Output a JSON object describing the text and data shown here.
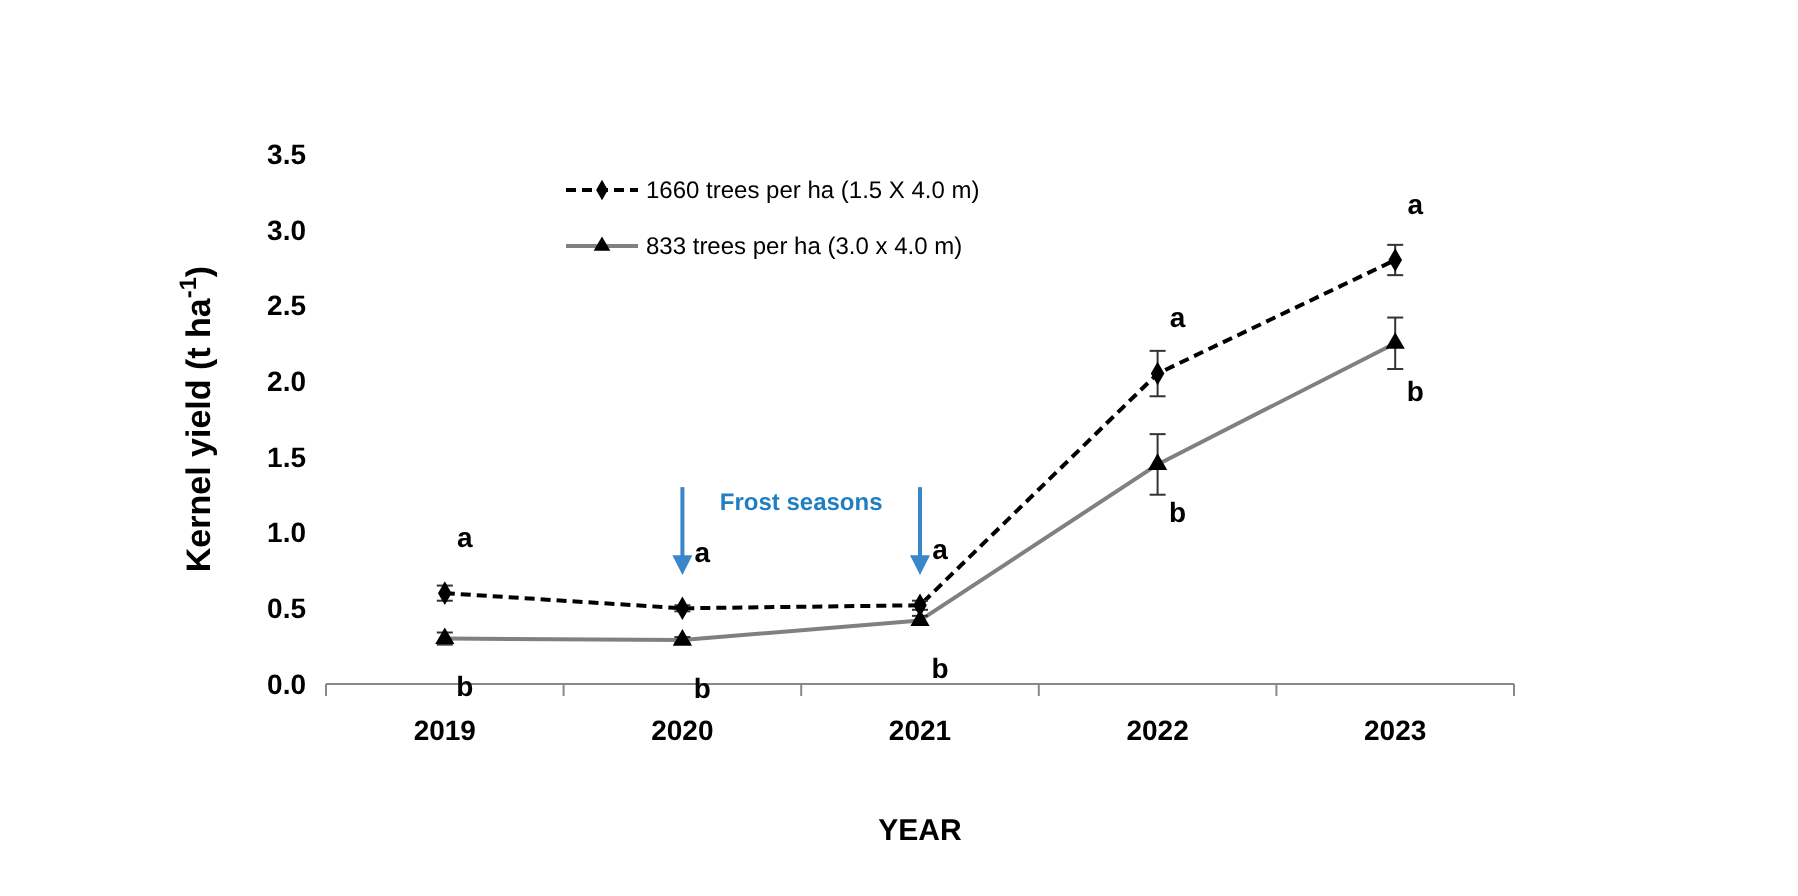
{
  "chart_data": {
    "type": "line",
    "xlabel": "YEAR",
    "ylabel": "Kernel yield (t ha$^{-1}$)",
    "categories": [
      "2019",
      "2020",
      "2021",
      "2022",
      "2023"
    ],
    "series": [
      {
        "name": "1660 trees per ha (1.5 X 4.0 m)",
        "color": "#000000",
        "marker": "diamond",
        "line_style": "dashed",
        "values": [
          0.6,
          0.5,
          0.52,
          2.05,
          2.8
        ],
        "errors": [
          0.05,
          0.02,
          0.03,
          0.15,
          0.1
        ]
      },
      {
        "name": "833 trees per ha (3.0 x 4.0 m)",
        "color": "#808080",
        "marker": "triangle",
        "line_style": "solid",
        "values": [
          0.3,
          0.29,
          0.42,
          1.45,
          2.25
        ],
        "errors": [
          0.04,
          0.02,
          0.03,
          0.2,
          0.17
        ]
      }
    ],
    "ylim": [
      0,
      3.5
    ],
    "yticks": [
      {
        "value": 0,
        "label": "0.0"
      },
      {
        "value": 0.5,
        "label": "0.5"
      },
      {
        "value": 1,
        "label": "1.0"
      },
      {
        "value": 1.5,
        "label": "1.5"
      },
      {
        "value": 2,
        "label": "2.0"
      },
      {
        "value": 2.5,
        "label": "2.5"
      },
      {
        "value": 3,
        "label": "3.0"
      },
      {
        "value": 3.5,
        "label": "3.5"
      }
    ],
    "grid": false,
    "legend": "top left",
    "annotations": [
      "Frost seasons",
      {
        "text": "a",
        "x": "2019",
        "y": 0.6
      },
      {
        "text": "b",
        "x": "2019",
        "y": 0.3
      },
      {
        "text": "a",
        "x": "2020",
        "y": 0.5
      },
      {
        "text": "b",
        "x": "2020",
        "y": 0.29
      },
      {
        "text": "a",
        "x": "2021",
        "y": 0.52
      },
      {
        "text": "b",
        "x": "2021",
        "y": 0.42
      },
      {
        "text": "a",
        "x": "2022",
        "y": 2.05
      },
      {
        "text": "b",
        "x": "2022",
        "y": 1.45
      },
      {
        "text": "a",
        "x": "2023",
        "y": 2.8
      },
      {
        "text": "b",
        "x": "2023",
        "y": 2.25
      }
    ]
  }
}
